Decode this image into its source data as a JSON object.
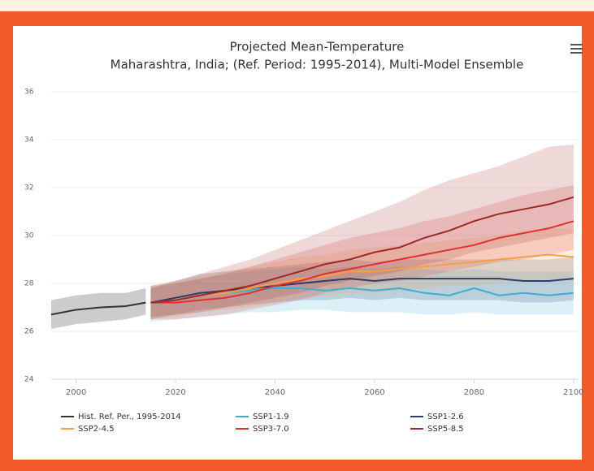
{
  "chart_data": {
    "type": "line",
    "title": "Projected Mean-Temperature",
    "subtitle": "Maharashtra, India; (Ref. Period: 1995-2014), Multi-Model Ensemble",
    "xlim": [
      1995,
      2101
    ],
    "xticks": [
      2000,
      2020,
      2040,
      2060,
      2080,
      2100
    ],
    "ylim": [
      24,
      36
    ],
    "yticks": [
      24,
      26,
      28,
      30,
      32,
      34,
      36
    ],
    "grid": true,
    "series": [
      {
        "name": "Hist. Ref. Per., 1995-2014",
        "color": "#333333",
        "x": [
          1995,
          2000,
          2005,
          2010,
          2014
        ],
        "values": [
          26.7,
          26.9,
          27.0,
          27.05,
          27.2
        ],
        "lower": [
          26.1,
          26.3,
          26.4,
          26.5,
          26.7
        ],
        "upper": [
          27.3,
          27.5,
          27.6,
          27.6,
          27.8
        ]
      },
      {
        "name": "SSP1-1.9",
        "color": "#3ab0d0",
        "x": [
          2015,
          2020,
          2025,
          2030,
          2035,
          2040,
          2045,
          2050,
          2055,
          2060,
          2065,
          2070,
          2075,
          2080,
          2085,
          2090,
          2095,
          2100
        ],
        "values": [
          27.2,
          27.3,
          27.5,
          27.6,
          27.7,
          27.8,
          27.8,
          27.7,
          27.8,
          27.7,
          27.8,
          27.6,
          27.5,
          27.8,
          27.5,
          27.6,
          27.5,
          27.6
        ],
        "lower": [
          26.4,
          26.5,
          26.6,
          26.7,
          26.8,
          26.8,
          26.9,
          26.9,
          26.8,
          26.8,
          26.8,
          26.7,
          26.7,
          26.8,
          26.7,
          26.7,
          26.7,
          26.7
        ],
        "upper": [
          27.8,
          28.0,
          28.2,
          28.4,
          28.5,
          28.6,
          28.7,
          28.6,
          28.7,
          28.6,
          28.7,
          28.6,
          28.5,
          28.6,
          28.5,
          28.5,
          28.5,
          28.5
        ]
      },
      {
        "name": "SSP1-2.6",
        "color": "#2c3e66",
        "x": [
          2015,
          2020,
          2025,
          2030,
          2035,
          2040,
          2045,
          2050,
          2055,
          2060,
          2065,
          2070,
          2075,
          2080,
          2085,
          2090,
          2095,
          2100
        ],
        "values": [
          27.2,
          27.4,
          27.6,
          27.7,
          27.8,
          27.9,
          28.0,
          28.1,
          28.2,
          28.1,
          28.2,
          28.2,
          28.2,
          28.2,
          28.2,
          28.1,
          28.1,
          28.2
        ],
        "lower": [
          26.5,
          26.7,
          26.9,
          27.0,
          27.1,
          27.2,
          27.3,
          27.3,
          27.4,
          27.3,
          27.4,
          27.3,
          27.3,
          27.3,
          27.3,
          27.2,
          27.2,
          27.3
        ],
        "upper": [
          27.9,
          28.1,
          28.4,
          28.5,
          28.6,
          28.7,
          28.8,
          28.9,
          29.0,
          28.9,
          29.0,
          29.0,
          29.0,
          29.0,
          29.0,
          29.0,
          29.0,
          29.1
        ]
      },
      {
        "name": "SSP2-4.5",
        "color": "#f5a040",
        "x": [
          2015,
          2020,
          2025,
          2030,
          2035,
          2040,
          2045,
          2050,
          2055,
          2060,
          2065,
          2070,
          2075,
          2080,
          2085,
          2090,
          2095,
          2100
        ],
        "values": [
          27.2,
          27.3,
          27.5,
          27.6,
          27.8,
          28.0,
          28.2,
          28.3,
          28.5,
          28.5,
          28.6,
          28.7,
          28.8,
          28.9,
          29.0,
          29.1,
          29.2,
          29.1
        ],
        "lower": [
          26.5,
          26.6,
          26.8,
          26.9,
          27.0,
          27.2,
          27.4,
          27.5,
          27.6,
          27.6,
          27.7,
          27.8,
          27.9,
          27.9,
          28.0,
          28.1,
          28.2,
          28.1
        ],
        "upper": [
          27.9,
          28.1,
          28.3,
          28.5,
          28.7,
          28.9,
          29.1,
          29.2,
          29.4,
          29.5,
          29.6,
          29.7,
          29.8,
          29.9,
          30.0,
          30.2,
          30.3,
          30.3
        ]
      },
      {
        "name": "SSP3-7.0",
        "color": "#e03030",
        "x": [
          2015,
          2020,
          2025,
          2030,
          2035,
          2040,
          2045,
          2050,
          2055,
          2060,
          2065,
          2070,
          2075,
          2080,
          2085,
          2090,
          2095,
          2100
        ],
        "values": [
          27.2,
          27.2,
          27.3,
          27.4,
          27.6,
          27.9,
          28.1,
          28.4,
          28.6,
          28.8,
          29.0,
          29.2,
          29.4,
          29.6,
          29.9,
          30.1,
          30.3,
          30.6
        ],
        "lower": [
          26.5,
          26.5,
          26.6,
          26.7,
          26.9,
          27.1,
          27.3,
          27.6,
          27.8,
          28.0,
          28.1,
          28.3,
          28.5,
          28.7,
          28.9,
          29.0,
          29.2,
          29.4
        ],
        "upper": [
          27.9,
          28.0,
          28.2,
          28.4,
          28.7,
          29.0,
          29.3,
          29.6,
          29.9,
          30.1,
          30.3,
          30.6,
          30.8,
          31.1,
          31.4,
          31.7,
          31.9,
          32.1
        ]
      },
      {
        "name": "SSP5-8.5",
        "color": "#a02828",
        "x": [
          2015,
          2020,
          2025,
          2030,
          2035,
          2040,
          2045,
          2050,
          2055,
          2060,
          2065,
          2070,
          2075,
          2080,
          2085,
          2090,
          2095,
          2100
        ],
        "values": [
          27.2,
          27.3,
          27.5,
          27.7,
          27.9,
          28.2,
          28.5,
          28.8,
          29.0,
          29.3,
          29.5,
          29.9,
          30.2,
          30.6,
          30.9,
          31.1,
          31.3,
          31.6
        ],
        "lower": [
          26.6,
          26.7,
          26.8,
          27.0,
          27.2,
          27.4,
          27.6,
          27.9,
          28.1,
          28.3,
          28.5,
          28.8,
          29.0,
          29.3,
          29.5,
          29.7,
          29.9,
          30.1
        ],
        "upper": [
          27.8,
          28.1,
          28.4,
          28.7,
          29.0,
          29.4,
          29.8,
          30.2,
          30.6,
          31.0,
          31.4,
          31.9,
          32.3,
          32.6,
          32.9,
          33.3,
          33.7,
          33.8
        ]
      }
    ]
  }
}
